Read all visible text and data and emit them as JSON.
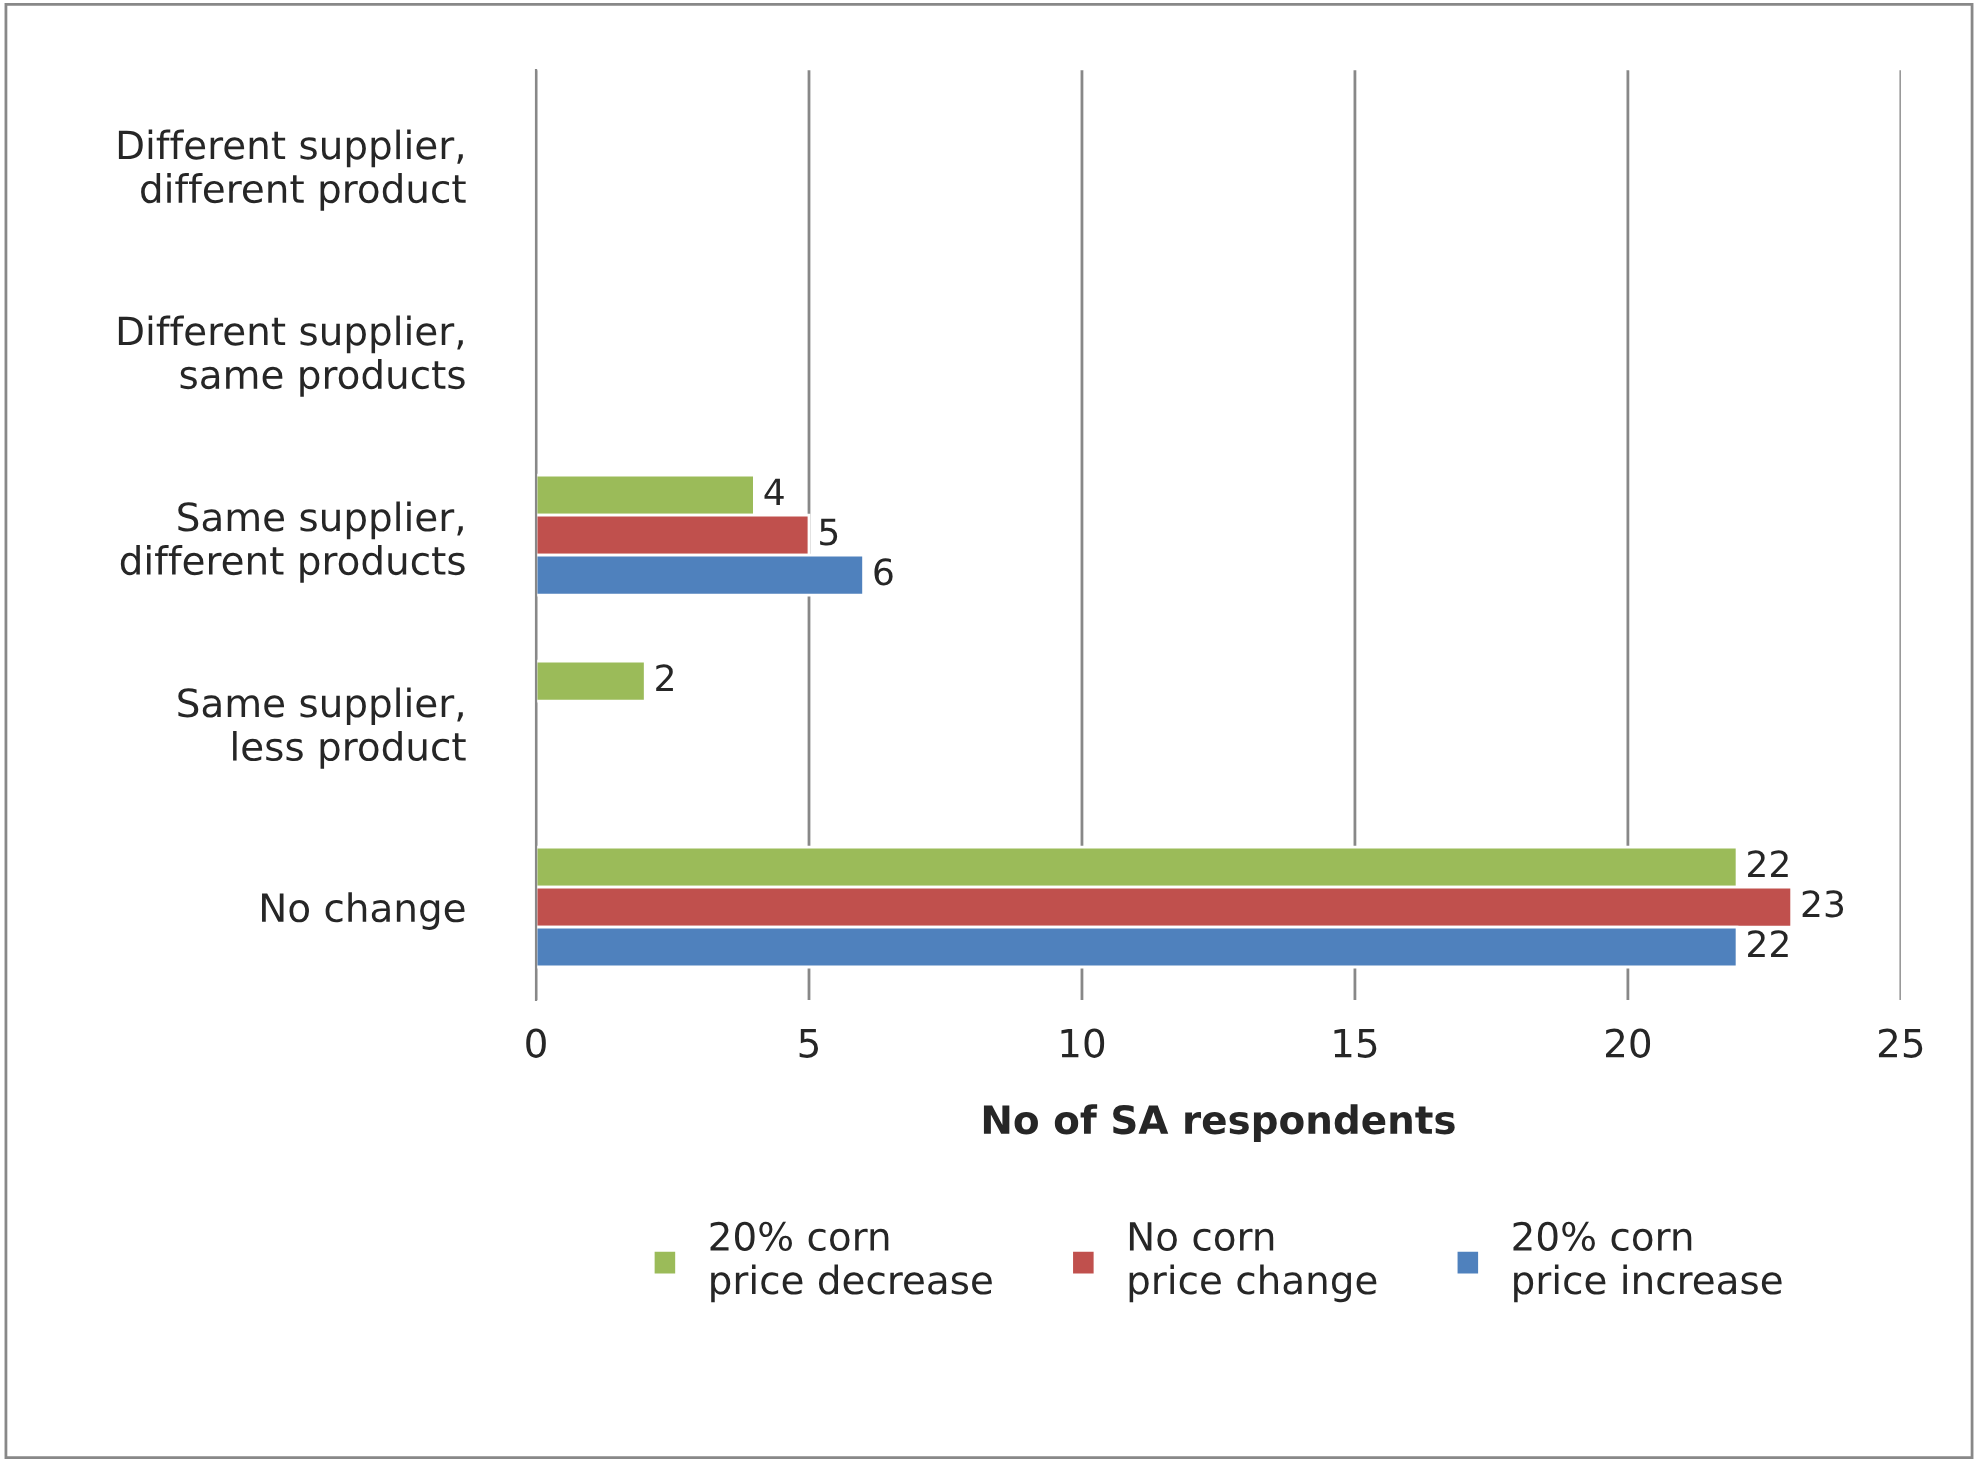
{
  "chart_data": {
    "type": "bar",
    "orientation": "horizontal",
    "xlabel": "No of SA respondents",
    "categories": [
      "Different supplier,\ndifferent product",
      "Different supplier,\nsame products",
      "Same supplier,\ndifferent products",
      "Same supplier,\nless product",
      "No change"
    ],
    "series": [
      {
        "name": "20% corn\nprice decrease",
        "color": "#9bbb59",
        "values": [
          null,
          null,
          4,
          2,
          22
        ]
      },
      {
        "name": "No corn\nprice change",
        "color": "#c0504d",
        "values": [
          null,
          null,
          5,
          null,
          23
        ]
      },
      {
        "name": "20% corn\nprice increase",
        "color": "#4f81bd",
        "values": [
          null,
          null,
          6,
          null,
          22
        ]
      }
    ],
    "xlim": [
      0,
      25
    ],
    "xticks": [
      0,
      5,
      10,
      15,
      20,
      25
    ],
    "grid": "x",
    "legend": "bottom",
    "data_labels": true
  }
}
